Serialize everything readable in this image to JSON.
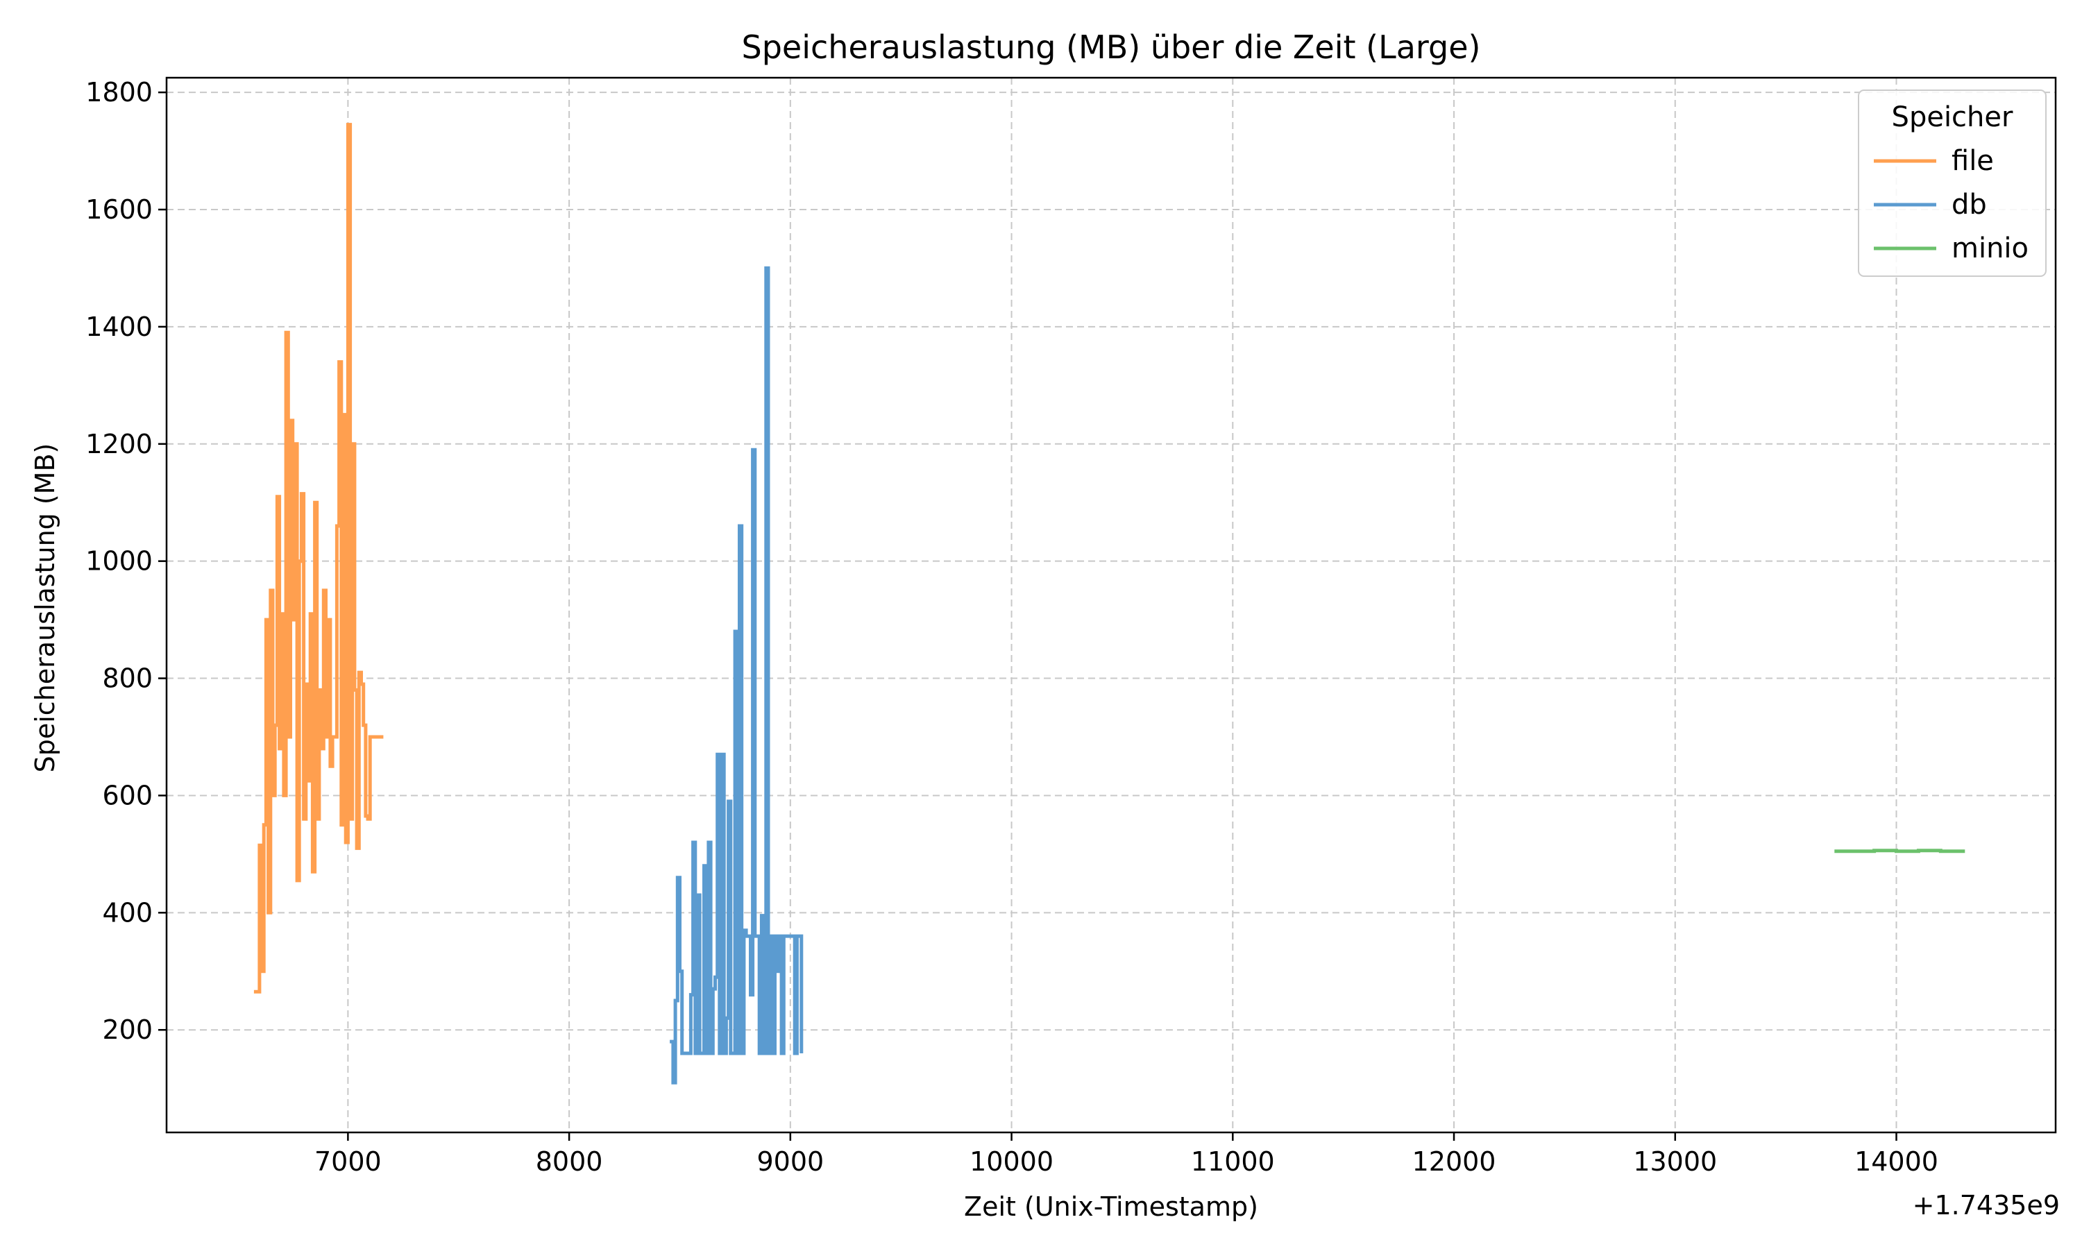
{
  "chart_data": {
    "type": "line",
    "title": "Speicherauslastung (MB) über die Zeit (Large)",
    "xlabel": "Zeit (Unix-Timestamp)",
    "ylabel": "Speicherauslastung (MB)",
    "x_offset_label": "+1.7435e9",
    "xlim": [
      6180,
      14720
    ],
    "ylim": [
      25,
      1825
    ],
    "x_ticks": [
      7000,
      8000,
      9000,
      10000,
      11000,
      12000,
      13000,
      14000
    ],
    "y_ticks": [
      200,
      400,
      600,
      800,
      1000,
      1200,
      1400,
      1600,
      1800
    ],
    "grid": true,
    "legend": {
      "title": "Speicher",
      "position": "top-right"
    },
    "series": [
      {
        "name": "file",
        "color": "#ff9f4f",
        "x": [
          6575,
          6595,
          6600,
          6610,
          6620,
          6630,
          6640,
          6650,
          6660,
          6670,
          6680,
          6690,
          6700,
          6710,
          6720,
          6730,
          6740,
          6750,
          6760,
          6770,
          6780,
          6790,
          6800,
          6810,
          6820,
          6830,
          6840,
          6850,
          6860,
          6870,
          6880,
          6890,
          6900,
          6910,
          6920,
          6930,
          6940,
          6950,
          6960,
          6970,
          6980,
          6990,
          7000,
          7010,
          7020,
          7030,
          7040,
          7050,
          7060,
          7070,
          7080,
          7090,
          7100,
          7110,
          7120,
          7130,
          7140,
          7150,
          7160
        ],
        "values": [
          265,
          265,
          515,
          300,
          550,
          900,
          400,
          950,
          600,
          720,
          1110,
          680,
          910,
          600,
          1390,
          700,
          1240,
          900,
          1200,
          455,
          1000,
          1115,
          560,
          790,
          625,
          910,
          470,
          1100,
          560,
          780,
          680,
          950,
          700,
          900,
          650,
          700,
          700,
          1060,
          1340,
          550,
          1250,
          520,
          1745,
          560,
          1200,
          780,
          510,
          810,
          790,
          720,
          565,
          560,
          700,
          700,
          700,
          700,
          700,
          700,
          700
        ]
      },
      {
        "name": "db",
        "color": "#5b9bd0",
        "x": [
          8455,
          8470,
          8480,
          8490,
          8500,
          8510,
          8520,
          8530,
          8540,
          8550,
          8560,
          8570,
          8580,
          8590,
          8600,
          8610,
          8620,
          8630,
          8640,
          8650,
          8660,
          8670,
          8680,
          8690,
          8700,
          8710,
          8720,
          8730,
          8740,
          8750,
          8760,
          8770,
          8780,
          8790,
          8800,
          8810,
          8820,
          8830,
          8840,
          8850,
          8860,
          8870,
          8880,
          8890,
          8900,
          8910,
          8920,
          8930,
          8940,
          8950,
          8960,
          8970,
          8980,
          8990,
          9000,
          9010,
          9020,
          9030,
          9040,
          9050
        ],
        "values": [
          180,
          110,
          250,
          460,
          300,
          160,
          160,
          160,
          160,
          260,
          520,
          160,
          430,
          160,
          160,
          480,
          160,
          520,
          160,
          270,
          290,
          670,
          160,
          670,
          160,
          220,
          590,
          160,
          160,
          880,
          160,
          1060,
          160,
          370,
          360,
          360,
          260,
          1190,
          360,
          360,
          160,
          395,
          160,
          1500,
          160,
          360,
          160,
          360,
          300,
          360,
          160,
          360,
          360,
          360,
          360,
          360,
          160,
          360,
          360,
          160
        ]
      },
      {
        "name": "minio",
        "color": "#6cc16c",
        "x": [
          13720,
          13800,
          13900,
          14000,
          14100,
          14200,
          14310
        ],
        "values": [
          505,
          505,
          506,
          505,
          506,
          505,
          505
        ]
      }
    ]
  }
}
